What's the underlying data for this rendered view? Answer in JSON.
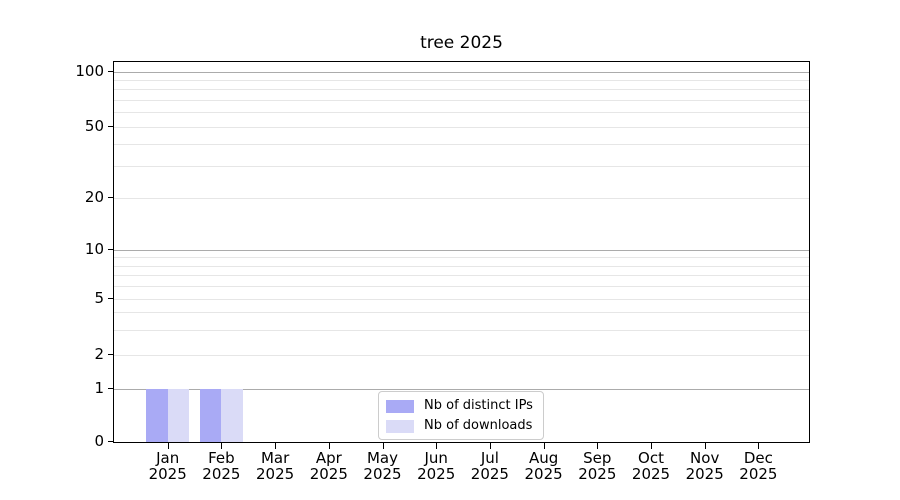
{
  "chart_data": {
    "type": "bar",
    "title": "tree 2025",
    "year": "2025",
    "months": [
      "Jan",
      "Feb",
      "Mar",
      "Apr",
      "May",
      "Jun",
      "Jul",
      "Aug",
      "Sep",
      "Oct",
      "Nov",
      "Dec"
    ],
    "categories": [
      "Jan 2025",
      "Feb 2025",
      "Mar 2025",
      "Apr 2025",
      "May 2025",
      "Jun 2025",
      "Jul 2025",
      "Aug 2025",
      "Sep 2025",
      "Oct 2025",
      "Nov 2025",
      "Dec 2025"
    ],
    "series": [
      {
        "name": "Nb of distinct IPs",
        "color": "#a9aaf5",
        "values": [
          1,
          1,
          0,
          0,
          0,
          0,
          0,
          0,
          0,
          0,
          0,
          0
        ]
      },
      {
        "name": "Nb of downloads",
        "color": "#dadbf7",
        "values": [
          1,
          1,
          0,
          0,
          0,
          0,
          0,
          0,
          0,
          0,
          0,
          0
        ]
      }
    ],
    "yscale": "symlog",
    "ylim": [
      0,
      113
    ],
    "y_ticks": [
      {
        "v": 0,
        "label": "0"
      },
      {
        "v": 1,
        "label": "1"
      },
      {
        "v": 2,
        "label": "2"
      },
      {
        "v": 5,
        "label": "5"
      },
      {
        "v": 10,
        "label": "10"
      },
      {
        "v": 20,
        "label": "20"
      },
      {
        "v": 50,
        "label": "50"
      },
      {
        "v": 100,
        "label": "100"
      }
    ],
    "y_major_gridlines": [
      1,
      10,
      100
    ],
    "y_minor_gridlines": [
      2,
      3,
      4,
      5,
      6,
      7,
      8,
      9,
      20,
      30,
      40,
      50,
      60,
      70,
      80,
      90
    ],
    "grid": true,
    "legend_position": "lower center inside",
    "colors": {
      "major_grid": "#ababab",
      "minor_grid": "#e6e6e6",
      "axis": "#000000",
      "background": "#ffffff"
    }
  }
}
